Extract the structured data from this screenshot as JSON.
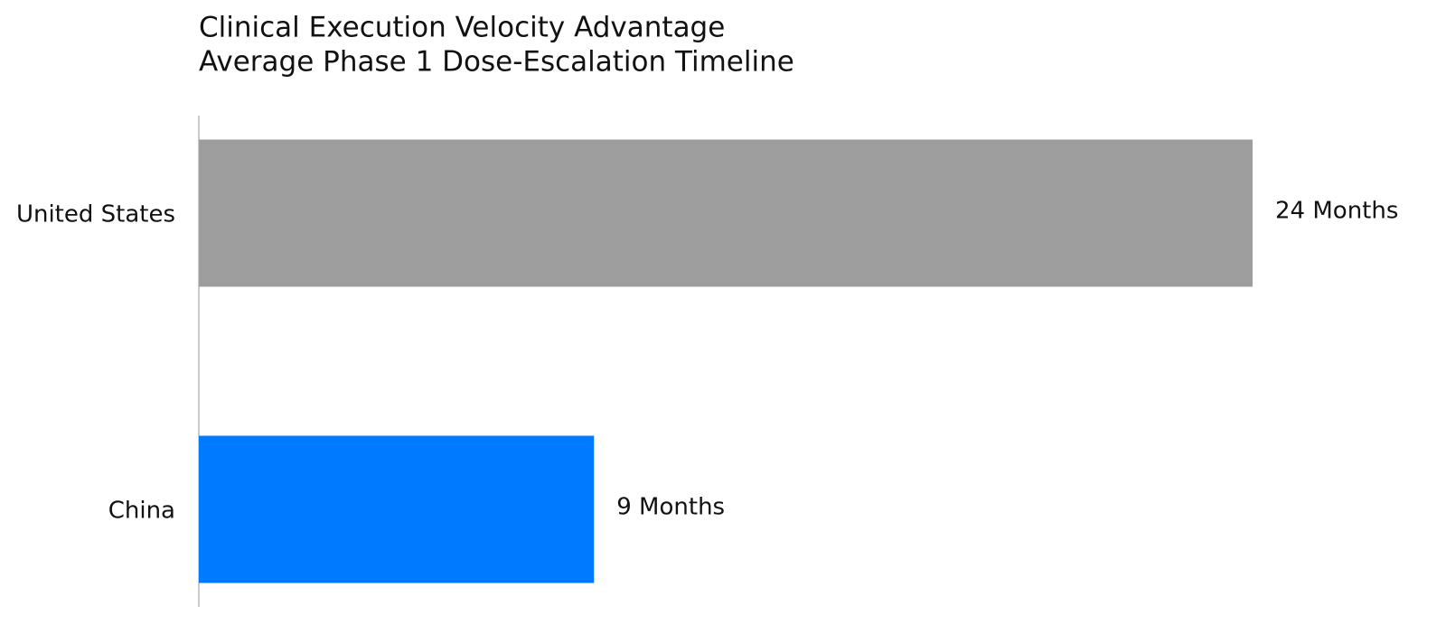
{
  "chart_data": {
    "type": "bar",
    "orientation": "horizontal",
    "title": "Clinical Execution Velocity Advantage",
    "subtitle": "Average Phase 1 Dose-Escalation Timeline",
    "categories": [
      "United States",
      "China"
    ],
    "values": [
      24,
      9
    ],
    "value_labels": [
      "24 Months",
      "9 Months"
    ],
    "colors": [
      "#9e9e9e",
      "#007aff"
    ],
    "xlim": [
      0,
      24
    ]
  }
}
